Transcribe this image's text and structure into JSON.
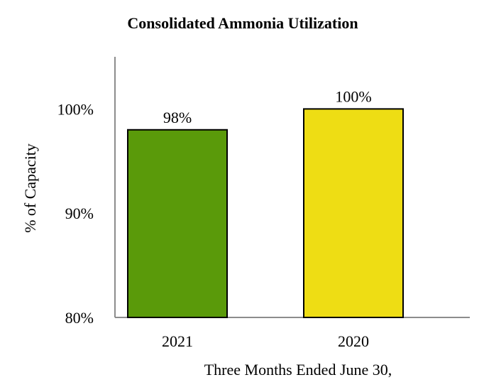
{
  "chart_data": {
    "type": "bar",
    "title": "Consolidated Ammonia Utilization",
    "xlabel": "Three Months Ended June 30,",
    "ylabel": "% of Capacity",
    "categories": [
      "2021",
      "2020"
    ],
    "values": [
      98,
      100
    ],
    "data_labels": [
      "98%",
      "100%"
    ],
    "ylim": [
      80,
      105
    ],
    "yticks": [
      80,
      90,
      100
    ],
    "ytick_labels": [
      "80%",
      "90%",
      "100%"
    ],
    "bar_colors": [
      "#5a9a0a",
      "#eedd14"
    ],
    "grid": false,
    "legend": "none"
  }
}
